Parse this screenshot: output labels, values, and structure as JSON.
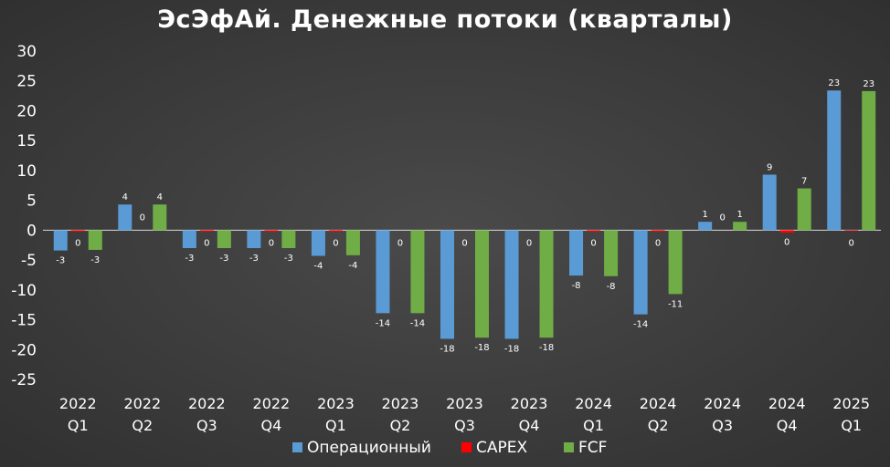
{
  "chart_data": {
    "type": "bar",
    "title": "ЭсЭфАй. Денежные потоки (кварталы)",
    "categories": [
      [
        "2022",
        "Q1"
      ],
      [
        "2022",
        "Q2"
      ],
      [
        "2022",
        "Q3"
      ],
      [
        "2022",
        "Q4"
      ],
      [
        "2023",
        "Q1"
      ],
      [
        "2023",
        "Q2"
      ],
      [
        "2023",
        "Q3"
      ],
      [
        "2023",
        "Q4"
      ],
      [
        "2024",
        "Q1"
      ],
      [
        "2024",
        "Q2"
      ],
      [
        "2024",
        "Q3"
      ],
      [
        "2024",
        "Q4"
      ],
      [
        "2025",
        "Q1"
      ]
    ],
    "series": [
      {
        "name": "Операционный",
        "color": "#5b9bd5",
        "values": [
          -3.4,
          4.3,
          -3.0,
          -3.0,
          -4.3,
          -13.9,
          -18.2,
          -18.2,
          -7.6,
          -14.1,
          1.4,
          9.3,
          23.4
        ],
        "labels": [
          "-3",
          "4",
          "-3",
          "-3",
          "-4",
          "-14",
          "-18",
          "-18",
          "-8",
          "-14",
          "1",
          "9",
          "23"
        ]
      },
      {
        "name": "CAPEX",
        "color": "#ff0000",
        "values": [
          -0.2,
          0,
          -0.2,
          -0.2,
          -0.2,
          0,
          0,
          0,
          -0.2,
          -0.2,
          0,
          -0.4,
          -0.1
        ],
        "labels": [
          "0",
          "0",
          "0",
          "0",
          "0",
          "0",
          "0",
          "0",
          "0",
          "0",
          "0",
          "0",
          "0"
        ]
      },
      {
        "name": "FCF",
        "color": "#70ad47",
        "values": [
          -3.3,
          4.3,
          -3.0,
          -3.0,
          -4.2,
          -13.9,
          -18.0,
          -18.0,
          -7.7,
          -10.7,
          1.4,
          7.0,
          23.3
        ],
        "labels": [
          "-3",
          "4",
          "-3",
          "-3",
          "-4",
          "-14",
          "-18",
          "-18",
          "-8",
          "-11",
          "1",
          "7",
          "23"
        ]
      }
    ],
    "ylim": [
      -25,
      30
    ],
    "yticks": [
      30,
      25,
      20,
      15,
      10,
      5,
      0,
      -5,
      -10,
      -15,
      -20,
      -25
    ],
    "xlabel": "",
    "ylabel": "",
    "grid": false,
    "legend_position": "bottom"
  }
}
